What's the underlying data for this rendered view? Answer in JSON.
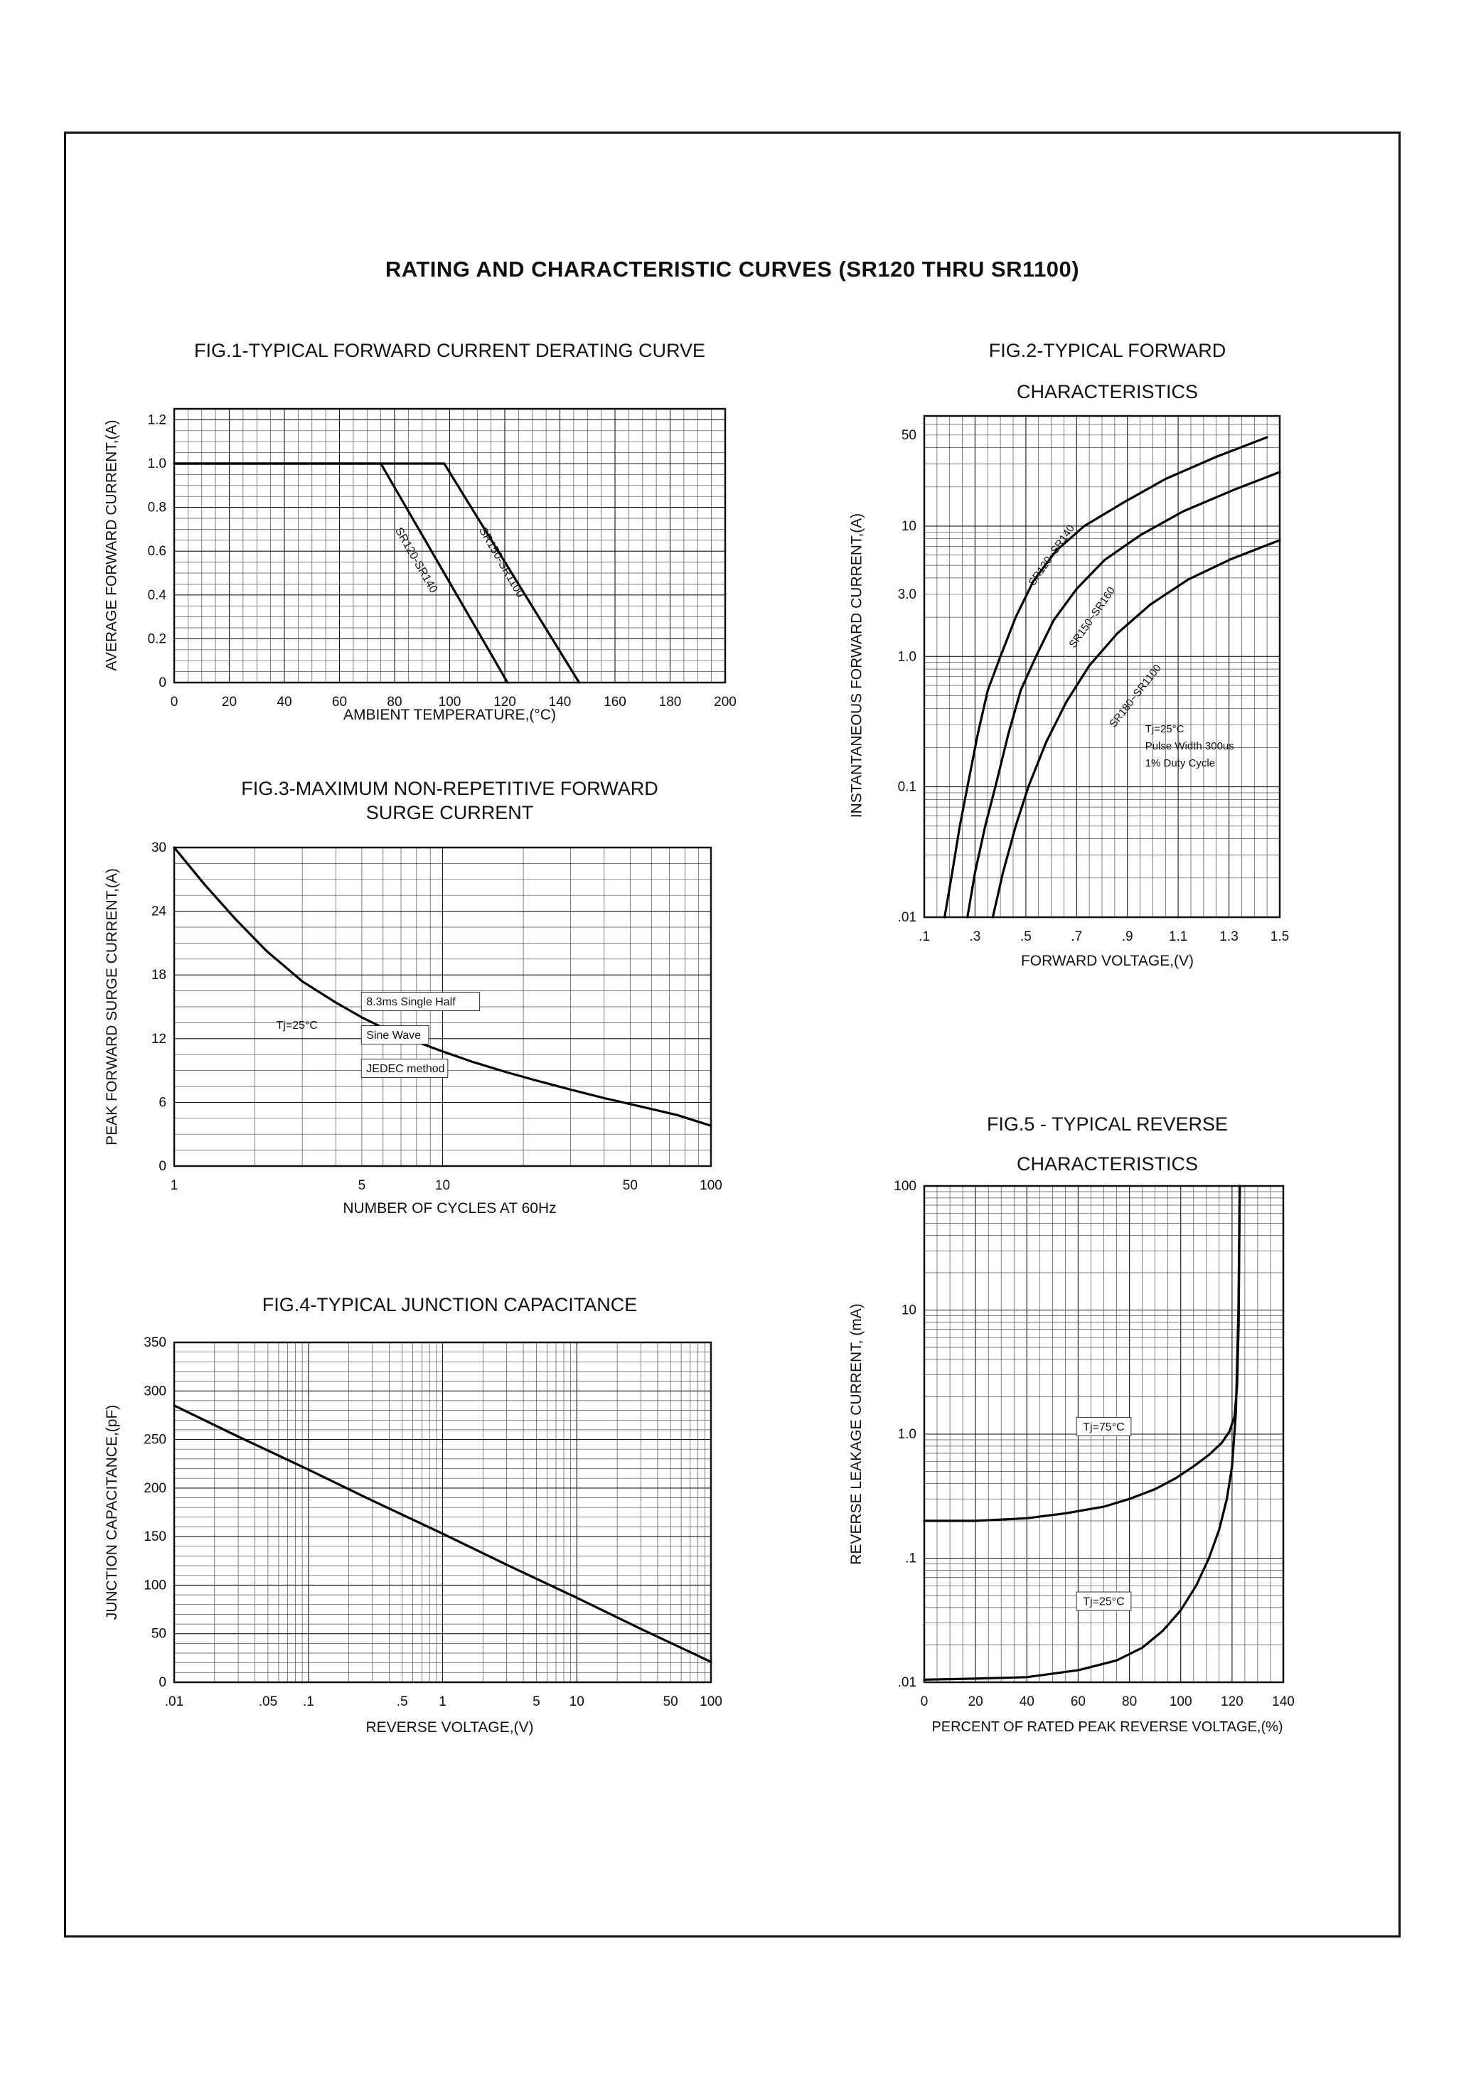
{
  "page": {
    "title": "RATING AND CHARACTERISTIC CURVES (SR120 THRU SR1100)"
  },
  "chart_data": [
    {
      "id": "fig1",
      "type": "line",
      "title": "FIG.1-TYPICAL FORWARD CURRENT DERATING CURVE",
      "xlabel": "AMBIENT TEMPERATURE,(°C)",
      "ylabel": "AVERAGE FORWARD CURRENT,(A)",
      "x_axis": {
        "scale": "linear",
        "min": 0,
        "max": 200,
        "grid_step": 5,
        "tick_vals": [
          0,
          20,
          40,
          60,
          80,
          100,
          120,
          140,
          160,
          180,
          200
        ],
        "tick_labels": [
          "0",
          "20",
          "40",
          "60",
          "80",
          "100",
          "120",
          "140",
          "160",
          "180",
          "200"
        ]
      },
      "y_axis": {
        "scale": "linear",
        "min": 0,
        "max": 1.25,
        "grid_step": 0.05,
        "tick_vals": [
          0,
          0.2,
          0.4,
          0.6,
          0.8,
          1.0,
          1.2
        ],
        "tick_labels": [
          "0",
          "0.2",
          "0.4",
          "0.6",
          "0.8",
          "1.0",
          "1.2"
        ]
      },
      "series": [
        {
          "name": "SR120-SR140",
          "points": [
            [
              0,
              1
            ],
            [
              75,
              1
            ],
            [
              121,
              0
            ]
          ]
        },
        {
          "name": "SR150-SR1100",
          "points": [
            [
              0,
              1
            ],
            [
              98,
              1
            ],
            [
              147,
              0
            ]
          ]
        }
      ],
      "annotations": [
        {
          "lines": [
            "SR120-SR140"
          ],
          "x": 88,
          "y": 0.56,
          "rotate": 60,
          "anchor": "middle",
          "font": 16
        },
        {
          "lines": [
            "SR150-SR1100"
          ],
          "x": 119,
          "y": 0.55,
          "rotate": 60,
          "anchor": "middle",
          "font": 16
        }
      ]
    },
    {
      "id": "fig2",
      "type": "line",
      "title": "FIG.2-TYPICAL FORWARD",
      "subtitle": "CHARACTERISTICS",
      "xlabel": "FORWARD VOLTAGE,(V)",
      "ylabel": "INSTANTANEOUS FORWARD CURRENT,(A)",
      "x_axis": {
        "scale": "linear",
        "min": 0.1,
        "max": 1.5,
        "grid_step": 0.05,
        "tick_vals": [
          0.1,
          0.3,
          0.5,
          0.7,
          0.9,
          1.1,
          1.3,
          1.5
        ],
        "tick_labels": [
          ".1",
          ".3",
          ".5",
          ".7",
          ".9",
          "1.1",
          "1.3",
          "1.5"
        ]
      },
      "y_axis": {
        "scale": "log",
        "min": 0.01,
        "max": 70,
        "tick_vals": [
          50,
          10,
          3,
          1,
          0.1,
          0.01
        ],
        "tick_labels": [
          "50",
          "10",
          "3.0",
          "1.0",
          "0.1",
          ".01"
        ]
      },
      "series": [
        {
          "name": "SR120~SR140",
          "points": [
            [
              0.18,
              0.01
            ],
            [
              0.21,
              0.022
            ],
            [
              0.24,
              0.05
            ],
            [
              0.27,
              0.1
            ],
            [
              0.31,
              0.25
            ],
            [
              0.35,
              0.55
            ],
            [
              0.4,
              1.0
            ],
            [
              0.46,
              2.0
            ],
            [
              0.53,
              3.8
            ],
            [
              0.62,
              6.5
            ],
            [
              0.73,
              10
            ],
            [
              0.88,
              15
            ],
            [
              1.05,
              23
            ],
            [
              1.25,
              34
            ],
            [
              1.45,
              48
            ]
          ]
        },
        {
          "name": "SR150~SR160",
          "points": [
            [
              0.27,
              0.01
            ],
            [
              0.3,
              0.022
            ],
            [
              0.34,
              0.05
            ],
            [
              0.38,
              0.1
            ],
            [
              0.43,
              0.25
            ],
            [
              0.48,
              0.55
            ],
            [
              0.54,
              1.0
            ],
            [
              0.61,
              1.9
            ],
            [
              0.7,
              3.3
            ],
            [
              0.81,
              5.5
            ],
            [
              0.95,
              8.5
            ],
            [
              1.12,
              13
            ],
            [
              1.32,
              19
            ],
            [
              1.5,
              26
            ]
          ]
        },
        {
          "name": "SR180~SR1100",
          "points": [
            [
              0.37,
              0.01
            ],
            [
              0.41,
              0.022
            ],
            [
              0.46,
              0.05
            ],
            [
              0.51,
              0.1
            ],
            [
              0.58,
              0.22
            ],
            [
              0.66,
              0.45
            ],
            [
              0.75,
              0.85
            ],
            [
              0.86,
              1.5
            ],
            [
              0.99,
              2.5
            ],
            [
              1.14,
              3.9
            ],
            [
              1.31,
              5.6
            ],
            [
              1.5,
              7.8
            ]
          ]
        }
      ],
      "annotations": [
        {
          "lines": [
            "SR120~SR140"
          ],
          "x": 0.6,
          "y": 6,
          "rotate": -55,
          "anchor": "middle",
          "font": 15
        },
        {
          "lines": [
            "SR150~SR160"
          ],
          "x": 0.76,
          "y": 2.0,
          "rotate": -55,
          "anchor": "middle",
          "font": 15
        },
        {
          "lines": [
            "SR180~SR1100"
          ],
          "x": 0.93,
          "y": 0.5,
          "rotate": -52,
          "anchor": "middle",
          "font": 15
        },
        {
          "lines": [
            "Tj=25°C",
            "Pulse Width 300us",
            "1% Duty Cycle"
          ],
          "x": 0.97,
          "y": 0.28,
          "anchor": "start",
          "font": 15,
          "lh": 24
        }
      ]
    },
    {
      "id": "fig3",
      "type": "line",
      "title": "FIG.3-MAXIMUM NON-REPETITIVE FORWARD",
      "subtitle": "SURGE CURRENT",
      "xlabel": "NUMBER OF CYCLES AT 60Hz",
      "ylabel": "PEAK FORWARD SURGE CURRENT,(A)",
      "x_axis": {
        "scale": "log",
        "min": 1,
        "max": 100,
        "tick_vals": [
          1,
          5,
          10,
          50,
          100
        ],
        "tick_labels": [
          "1",
          "5",
          "10",
          "50",
          "100"
        ]
      },
      "y_axis": {
        "scale": "linear",
        "min": 0,
        "max": 30,
        "grid_step": 1.5,
        "tick_vals": [
          0,
          6,
          12,
          18,
          24,
          30
        ],
        "tick_labels": [
          "0",
          "6",
          "12",
          "18",
          "24",
          "30"
        ]
      },
      "series": [
        {
          "name": "surge",
          "points": [
            [
              1,
              30
            ],
            [
              1.3,
              26.5
            ],
            [
              1.7,
              23.2
            ],
            [
              2.2,
              20.3
            ],
            [
              3,
              17.4
            ],
            [
              4,
              15.4
            ],
            [
              5,
              14
            ],
            [
              6.5,
              12.6
            ],
            [
              8,
              11.7
            ],
            [
              10,
              10.8
            ],
            [
              13,
              9.8
            ],
            [
              17,
              8.9
            ],
            [
              22,
              8.1
            ],
            [
              30,
              7.2
            ],
            [
              40,
              6.4
            ],
            [
              55,
              5.6
            ],
            [
              75,
              4.8
            ],
            [
              100,
              3.8
            ]
          ]
        }
      ],
      "annotations": [
        {
          "lines": [
            "Tj=25°C"
          ],
          "x": 2.4,
          "y": 13.3,
          "anchor": "start",
          "font": 16
        },
        {
          "lines": [
            "8.3ms Single Half",
            "Sine Wave",
            "JEDEC method"
          ],
          "x": 5.2,
          "y": 15.5,
          "anchor": "start",
          "font": 16,
          "lh": 47,
          "boxed": true
        }
      ]
    },
    {
      "id": "fig4",
      "type": "line",
      "title": "FIG.4-TYPICAL JUNCTION CAPACITANCE",
      "xlabel": "REVERSE VOLTAGE,(V)",
      "ylabel": "JUNCTION CAPACITANCE,(pF)",
      "x_axis": {
        "scale": "log",
        "min": 0.01,
        "max": 100,
        "tick_vals": [
          0.01,
          0.05,
          0.1,
          0.5,
          1,
          5,
          10,
          50,
          100
        ],
        "tick_labels": [
          ".01",
          ".05",
          ".1",
          ".5",
          "1",
          "5",
          "10",
          "50",
          "100"
        ]
      },
      "y_axis": {
        "scale": "linear",
        "min": 0,
        "max": 350,
        "grid_step": 10,
        "tick_vals": [
          0,
          50,
          100,
          150,
          200,
          250,
          300,
          350
        ],
        "tick_labels": [
          "0",
          "50",
          "100",
          "150",
          "200",
          "250",
          "300",
          "350"
        ]
      },
      "series": [
        {
          "name": "capacitance",
          "points": [
            [
              0.01,
              285
            ],
            [
              0.03,
              253
            ],
            [
              0.1,
              219
            ],
            [
              0.3,
              187
            ],
            [
              1,
              153
            ],
            [
              3,
              121
            ],
            [
              10,
              87
            ],
            [
              30,
              55
            ],
            [
              100,
              21
            ]
          ]
        }
      ],
      "annotations": []
    },
    {
      "id": "fig5",
      "type": "line",
      "title": "FIG.5 - TYPICAL REVERSE",
      "subtitle": "CHARACTERISTICS",
      "xlabel": "PERCENT OF RATED PEAK REVERSE VOLTAGE,(%)",
      "ylabel": "REVERSE LEAKAGE CURRENT, (mA)",
      "x_axis": {
        "scale": "linear",
        "min": 0,
        "max": 140,
        "grid_step": 5,
        "tick_vals": [
          0,
          20,
          40,
          60,
          80,
          100,
          120,
          140
        ],
        "tick_labels": [
          "0",
          "20",
          "40",
          "60",
          "80",
          "100",
          "120",
          "140"
        ]
      },
      "y_axis": {
        "scale": "log",
        "min": 0.01,
        "max": 100,
        "tick_vals": [
          100,
          10,
          1,
          0.1,
          0.01
        ],
        "tick_labels": [
          "100",
          "10",
          "1.0",
          ".1",
          ".01"
        ]
      },
      "series": [
        {
          "name": "Tj=75°C",
          "points": [
            [
              0,
              0.2
            ],
            [
              20,
              0.2
            ],
            [
              40,
              0.21
            ],
            [
              55,
              0.23
            ],
            [
              70,
              0.26
            ],
            [
              80,
              0.3
            ],
            [
              90,
              0.36
            ],
            [
              98,
              0.44
            ],
            [
              105,
              0.55
            ],
            [
              111,
              0.68
            ],
            [
              116,
              0.85
            ],
            [
              119,
              1.05
            ],
            [
              121,
              1.4
            ],
            [
              122,
              2.5
            ],
            [
              122.6,
              8
            ],
            [
              123,
              100
            ]
          ]
        },
        {
          "name": "Tj=25°C",
          "points": [
            [
              0,
              0.0105
            ],
            [
              20,
              0.0107
            ],
            [
              40,
              0.011
            ],
            [
              60,
              0.0125
            ],
            [
              75,
              0.015
            ],
            [
              85,
              0.019
            ],
            [
              93,
              0.026
            ],
            [
              100,
              0.038
            ],
            [
              106,
              0.06
            ],
            [
              111,
              0.1
            ],
            [
              115,
              0.17
            ],
            [
              118,
              0.3
            ],
            [
              120,
              0.55
            ],
            [
              121.5,
              1.5
            ],
            [
              122.5,
              10
            ],
            [
              123,
              100
            ]
          ]
        }
      ],
      "annotations": [
        {
          "lines": [
            "Tj=75°C"
          ],
          "x": 70,
          "y": 1.15,
          "anchor": "middle",
          "boxed": true,
          "font": 16
        },
        {
          "lines": [
            "Tj=25°C"
          ],
          "x": 70,
          "y": 0.045,
          "anchor": "middle",
          "boxed": true,
          "font": 16
        }
      ]
    }
  ]
}
